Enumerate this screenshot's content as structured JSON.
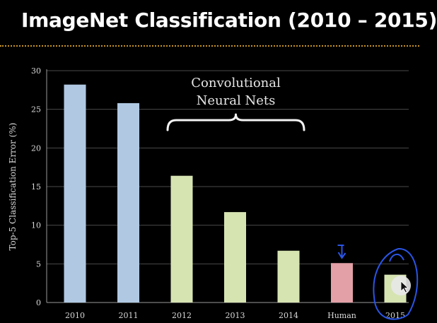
{
  "slide": {
    "title": "ImageNet Classification (2010 – 2015)",
    "accent_color": "#c8962a"
  },
  "chart_data": {
    "type": "bar",
    "title": "",
    "xlabel": "",
    "ylabel": "Top-5 Classification Error (%)",
    "ylim": [
      0,
      30
    ],
    "yticks": [
      "0",
      "5",
      "10",
      "15",
      "20",
      "25",
      "30"
    ],
    "grid": true,
    "categories": [
      "2010",
      "2011",
      "2012",
      "2013",
      "2014",
      "Human",
      "2015"
    ],
    "values": [
      28.2,
      25.8,
      16.4,
      11.7,
      6.7,
      5.1,
      3.6
    ],
    "bar_colors": [
      "#b0c8e2",
      "#b0c8e2",
      "#d6e4b2",
      "#d6e4b2",
      "#d6e4b2",
      "#e3a0a6",
      "#d6e4b2"
    ],
    "annotation": {
      "lines": [
        "Convolutional",
        "Neural Nets"
      ],
      "spans_from": "2012",
      "spans_to": "2014"
    },
    "overlay_ink_color": "#2a55e6"
  }
}
